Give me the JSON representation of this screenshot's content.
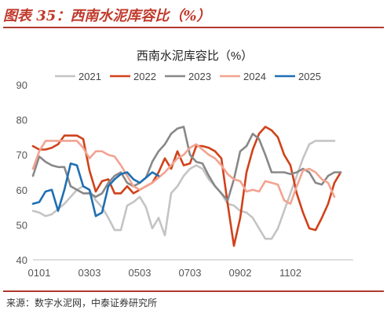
{
  "figure": {
    "title": "图表 35：西南水泥库容比（%）",
    "source": "来源：数字水泥网，中泰证券研究所"
  },
  "chart_data": {
    "type": "line",
    "title": "西南水泥库容比（%）",
    "xlabel": "",
    "ylabel": "",
    "ylim": [
      40,
      90
    ],
    "yticks": [
      40,
      50,
      60,
      70,
      80,
      90
    ],
    "xticks": [
      "0101",
      "0303",
      "0503",
      "0703",
      "0902",
      "1102"
    ],
    "grid": false,
    "legend_position": "top",
    "series": [
      {
        "name": "2021",
        "color": "#c4c4c4",
        "values": [
          54,
          53.5,
          52.5,
          53,
          54.5,
          56,
          58,
          60,
          61,
          60,
          57,
          55,
          52,
          48.5,
          48.5,
          55.5,
          56.5,
          58,
          55,
          49,
          52,
          47,
          59,
          61,
          64,
          66,
          67,
          66,
          63,
          61,
          59,
          56,
          55.5,
          54,
          53.5,
          52,
          49,
          46,
          46,
          49,
          54,
          59,
          64,
          69,
          73,
          74,
          74,
          74,
          74
        ]
      },
      {
        "name": "2022",
        "color": "#d0421b",
        "values": [
          72.5,
          71.5,
          71.5,
          72,
          73,
          75.5,
          75.5,
          75.5,
          74.5,
          65.5,
          59.5,
          62.5,
          63,
          59,
          59,
          61,
          59,
          60,
          61,
          62,
          65,
          69,
          66,
          71,
          67,
          67.5,
          72.5,
          72.5,
          72,
          71,
          69,
          56,
          44,
          52,
          65,
          71.5,
          76,
          78,
          77,
          75,
          70,
          67,
          59,
          53.5,
          49,
          48.5,
          52,
          56,
          62,
          65
        ]
      },
      {
        "name": "2023",
        "color": "#888888",
        "values": [
          64,
          69.5,
          68,
          67,
          66.5,
          66.5,
          61,
          60,
          59,
          59,
          58,
          59,
          62,
          64,
          65,
          62,
          61,
          62,
          63.5,
          68,
          71,
          73,
          76,
          77.5,
          78,
          70,
          68,
          67.5,
          64,
          61,
          59,
          57,
          63,
          71,
          72.5,
          76,
          74.5,
          70,
          65,
          65,
          65,
          64.5,
          65,
          66,
          65,
          62,
          61.5,
          64,
          65,
          65
        ]
      },
      {
        "name": "2024",
        "color": "#f2a390",
        "values": [
          66,
          71,
          74,
          74,
          74,
          74,
          74,
          74,
          72,
          69,
          71,
          71,
          70,
          69.5,
          67,
          64,
          61,
          60,
          61,
          62,
          63.5,
          65,
          67,
          69,
          70,
          72,
          73,
          71.5,
          70,
          69,
          67,
          64.5,
          63,
          62.5,
          59.5,
          60,
          59.5,
          62.5,
          62,
          61.5,
          57,
          56,
          61,
          65.5,
          66,
          65,
          63,
          62,
          58
        ]
      },
      {
        "name": "2025",
        "color": "#1f6fb2",
        "values": [
          56,
          56.5,
          59.5,
          60,
          54,
          60,
          67.5,
          67,
          61,
          60,
          52.5,
          53.5,
          61,
          63,
          64.5,
          65,
          63,
          62,
          63.5,
          65,
          64
        ]
      }
    ]
  }
}
